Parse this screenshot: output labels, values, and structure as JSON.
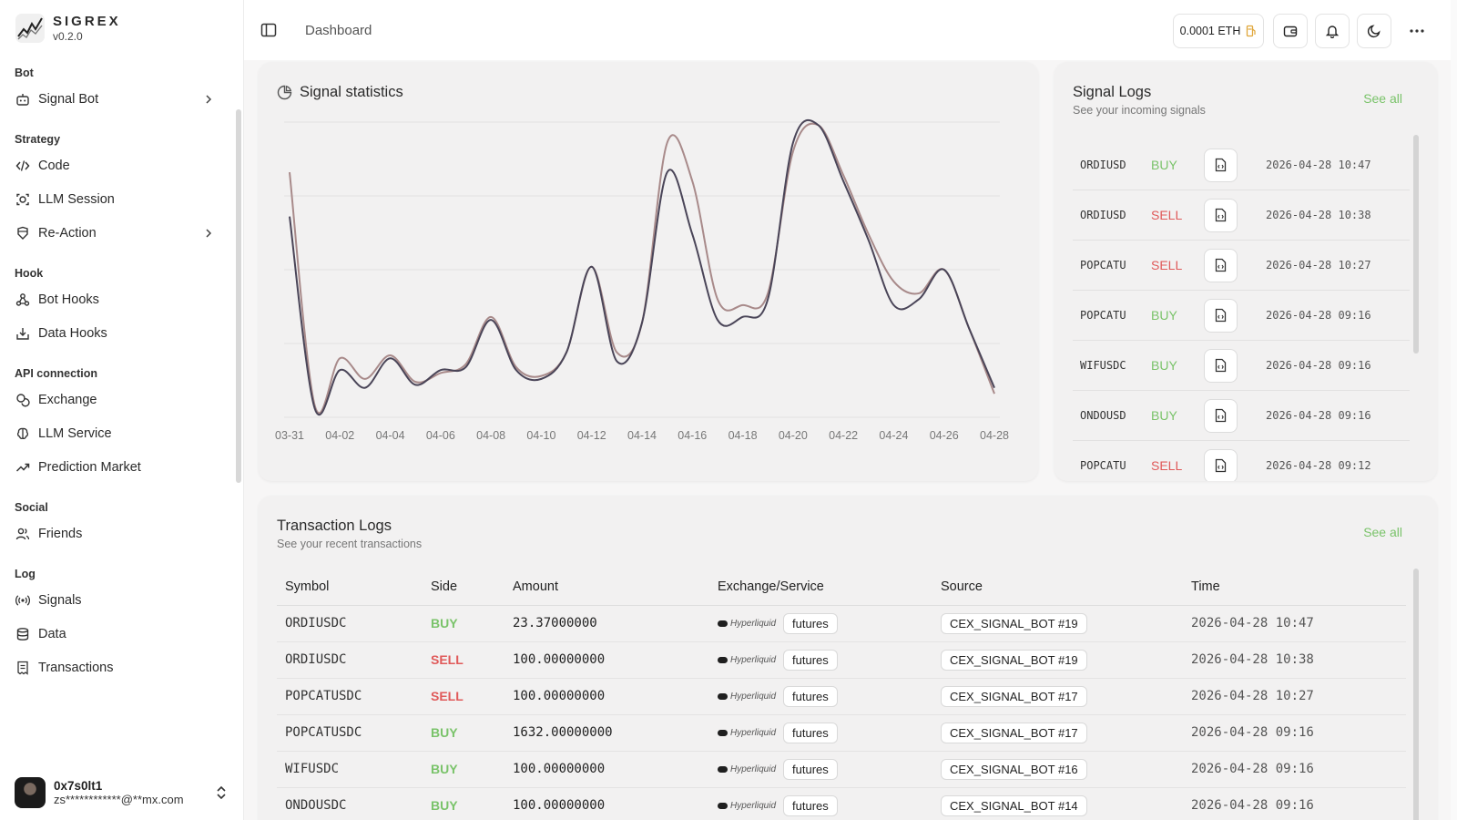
{
  "brand": {
    "name": "SIGREX",
    "version": "v0.2.0"
  },
  "nav": {
    "sections": [
      {
        "title": "Bot",
        "items": [
          {
            "label": "Signal Bot",
            "icon": "bot-icon",
            "chevron": true
          }
        ]
      },
      {
        "title": "Strategy",
        "items": [
          {
            "label": "Code",
            "icon": "code-icon",
            "chevron": false
          },
          {
            "label": "LLM Session",
            "icon": "llm-session-icon",
            "chevron": false
          },
          {
            "label": "Re-Action",
            "icon": "re-action-icon",
            "chevron": true
          }
        ]
      },
      {
        "title": "Hook",
        "items": [
          {
            "label": "Bot Hooks",
            "icon": "webhook-icon",
            "chevron": false
          },
          {
            "label": "Data Hooks",
            "icon": "inbox-download-icon",
            "chevron": false
          }
        ]
      },
      {
        "title": "API connection",
        "items": [
          {
            "label": "Exchange",
            "icon": "coins-icon",
            "chevron": false
          },
          {
            "label": "LLM Service",
            "icon": "brain-icon",
            "chevron": false
          },
          {
            "label": "Prediction Market",
            "icon": "trend-up-icon",
            "chevron": false
          }
        ]
      },
      {
        "title": "Social",
        "items": [
          {
            "label": "Friends",
            "icon": "users-icon",
            "chevron": false
          }
        ]
      },
      {
        "title": "Log",
        "items": [
          {
            "label": "Signals",
            "icon": "radio-icon",
            "chevron": false
          },
          {
            "label": "Data",
            "icon": "database-icon",
            "chevron": false
          },
          {
            "label": "Transactions",
            "icon": "receipt-icon",
            "chevron": false
          }
        ]
      }
    ]
  },
  "user": {
    "name": "0x7s0lt1",
    "email": "zs************@**mx.com"
  },
  "topbar": {
    "title": "Dashboard",
    "balance": "0.0001 ETH"
  },
  "stats": {
    "title": "Signal statistics",
    "chart_data": {
      "type": "line",
      "title": "Signal statistics",
      "x": [
        "03-31",
        "04-01",
        "04-02",
        "04-03",
        "04-04",
        "04-05",
        "04-06",
        "04-07",
        "04-08",
        "04-09",
        "04-10",
        "04-11",
        "04-12",
        "04-13",
        "04-14",
        "04-15",
        "04-16",
        "04-17",
        "04-18",
        "04-19",
        "04-20",
        "04-21",
        "04-22",
        "04-23",
        "04-24",
        "04-25",
        "04-26",
        "04-27",
        "04-28"
      ],
      "tick_labels": [
        "03-31",
        "04-02",
        "04-04",
        "04-06",
        "04-08",
        "04-10",
        "04-12",
        "04-14",
        "04-16",
        "04-18",
        "04-20",
        "04-22",
        "04-24",
        "04-26",
        "04-28"
      ],
      "ylim": [
        0,
        100
      ],
      "grid": true,
      "series": [
        {
          "color": "#a88a8a",
          "values": [
            83,
            4,
            20,
            13,
            21,
            12,
            15,
            18,
            34,
            17,
            14,
            22,
            51,
            22,
            32,
            93,
            80,
            40,
            38,
            42,
            90,
            99,
            82,
            62,
            46,
            42,
            50,
            30,
            8
          ]
        },
        {
          "color": "#4a4558",
          "values": [
            68,
            3,
            16,
            10,
            20,
            11,
            16,
            17,
            33,
            16,
            13,
            22,
            51,
            19,
            32,
            83,
            62,
            33,
            34,
            40,
            93,
            99,
            80,
            60,
            38,
            40,
            50,
            30,
            10
          ]
        }
      ]
    }
  },
  "signals": {
    "title": "Signal Logs",
    "subtitle": "See your incoming signals",
    "see_all": "See all",
    "rows": [
      {
        "symbol": "ORDIUSD",
        "side": "BUY",
        "time": "2026-04-28 10:47"
      },
      {
        "symbol": "ORDIUSD",
        "side": "SELL",
        "time": "2026-04-28 10:38"
      },
      {
        "symbol": "POPCATU",
        "side": "SELL",
        "time": "2026-04-28 10:27"
      },
      {
        "symbol": "POPCATU",
        "side": "BUY",
        "time": "2026-04-28 09:16"
      },
      {
        "symbol": "WIFUSDC",
        "side": "BUY",
        "time": "2026-04-28 09:16"
      },
      {
        "symbol": "ONDOUSD",
        "side": "BUY",
        "time": "2026-04-28 09:16"
      },
      {
        "symbol": "POPCATU",
        "side": "SELL",
        "time": "2026-04-28 09:12"
      }
    ]
  },
  "transactions": {
    "title": "Transaction Logs",
    "subtitle": "See your recent transactions",
    "see_all": "See all",
    "columns": [
      "Symbol",
      "Side",
      "Amount",
      "Exchange/Service",
      "Source",
      "Time"
    ],
    "rows": [
      {
        "symbol": "ORDIUSDC",
        "side": "BUY",
        "amount": "23.37000000",
        "exchange": "Hyperliquid",
        "market": "futures",
        "source": "CEX_SIGNAL_BOT #19",
        "time": "2026-04-28 10:47"
      },
      {
        "symbol": "ORDIUSDC",
        "side": "SELL",
        "amount": "100.00000000",
        "exchange": "Hyperliquid",
        "market": "futures",
        "source": "CEX_SIGNAL_BOT #19",
        "time": "2026-04-28 10:38"
      },
      {
        "symbol": "POPCATUSDC",
        "side": "SELL",
        "amount": "100.00000000",
        "exchange": "Hyperliquid",
        "market": "futures",
        "source": "CEX_SIGNAL_BOT #17",
        "time": "2026-04-28 10:27"
      },
      {
        "symbol": "POPCATUSDC",
        "side": "BUY",
        "amount": "1632.00000000",
        "exchange": "Hyperliquid",
        "market": "futures",
        "source": "CEX_SIGNAL_BOT #17",
        "time": "2026-04-28 09:16"
      },
      {
        "symbol": "WIFUSDC",
        "side": "BUY",
        "amount": "100.00000000",
        "exchange": "Hyperliquid",
        "market": "futures",
        "source": "CEX_SIGNAL_BOT #16",
        "time": "2026-04-28 09:16"
      },
      {
        "symbol": "ONDOUSDC",
        "side": "BUY",
        "amount": "100.00000000",
        "exchange": "Hyperliquid",
        "market": "futures",
        "source": "CEX_SIGNAL_BOT #14",
        "time": "2026-04-28 09:16"
      }
    ]
  },
  "colors": {
    "buy": "#7ac36a",
    "sell": "#e05a5a",
    "accent": "#7ac36a"
  }
}
